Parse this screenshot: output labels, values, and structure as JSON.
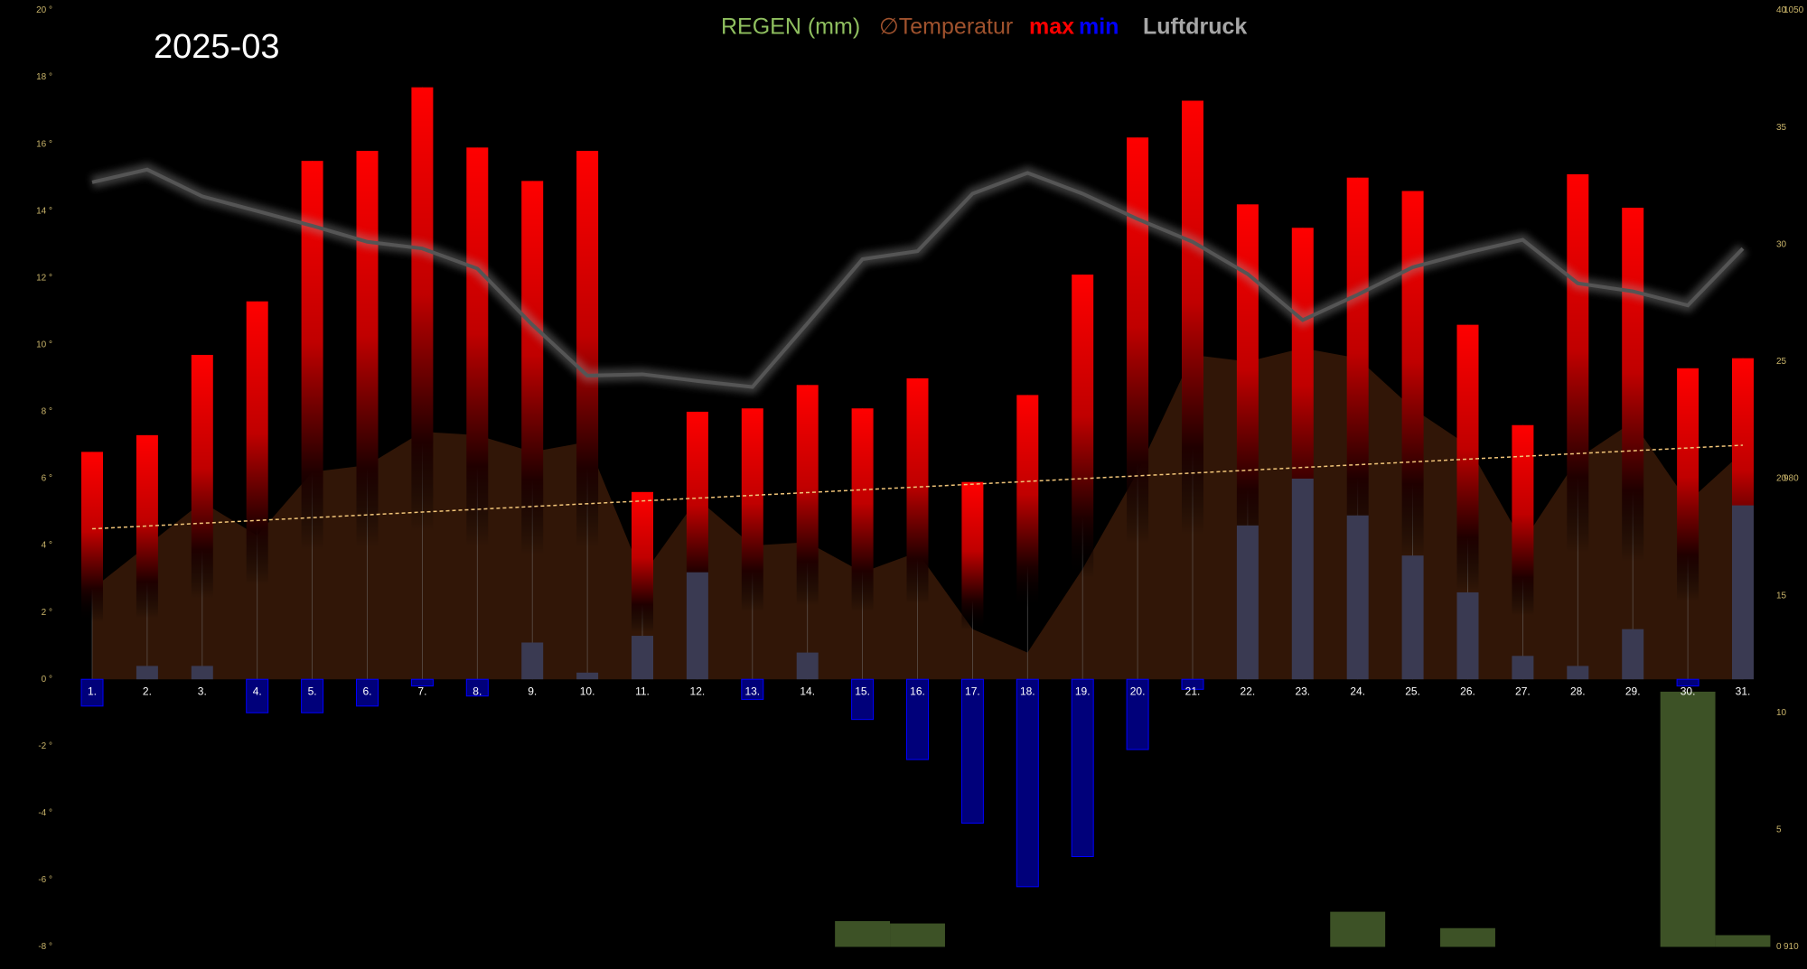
{
  "chart_data": {
    "type": "combo",
    "title": "2025-03",
    "categories": [
      "1.",
      "2.",
      "3.",
      "4.",
      "5.",
      "6.",
      "7.",
      "8.",
      "9.",
      "10.",
      "11.",
      "12.",
      "13.",
      "14.",
      "15.",
      "16.",
      "17.",
      "18.",
      "19.",
      "20.",
      "21.",
      "22.",
      "23.",
      "24.",
      "25.",
      "26.",
      "27.",
      "28.",
      "29.",
      "30.",
      "31."
    ],
    "ylim": [
      -8,
      20
    ],
    "yticks": [
      {
        "value": -8,
        "label": "-8 °"
      },
      {
        "value": -6,
        "label": "-6 °"
      },
      {
        "value": -4,
        "label": "-4 °"
      },
      {
        "value": -2,
        "label": "-2 °"
      },
      {
        "value": 0,
        "label": "0 °"
      },
      {
        "value": 2,
        "label": "2 °"
      },
      {
        "value": 4,
        "label": "4 °"
      },
      {
        "value": 6,
        "label": "6 °"
      },
      {
        "value": 8,
        "label": "8 °"
      },
      {
        "value": 10,
        "label": "10 °"
      },
      {
        "value": 12,
        "label": "12 °"
      },
      {
        "value": 14,
        "label": "14 °"
      },
      {
        "value": 16,
        "label": "16 °"
      },
      {
        "value": 18,
        "label": "18 °"
      },
      {
        "value": 20,
        "label": "20 °"
      }
    ],
    "y2lim": [
      0,
      40
    ],
    "y2ticks": [
      0,
      5,
      10,
      15,
      20,
      25,
      30,
      35,
      40
    ],
    "y3lim": [
      910,
      1050
    ],
    "y3ticks": [
      910,
      980,
      1050
    ],
    "series": [
      {
        "name": "REGEN (mm)",
        "color": "#3d5226",
        "legend_color": "#8fbf5f",
        "type": "bar",
        "axis": "y2",
        "values": [
          0,
          0,
          0,
          0,
          0,
          0,
          0,
          0,
          0,
          0,
          0,
          0,
          0,
          0,
          1.1,
          1.0,
          0,
          0,
          0,
          0,
          0,
          0,
          0,
          1.5,
          0,
          0.8,
          0,
          0,
          0,
          10.9,
          0.5
        ]
      },
      {
        "name": "∅Temperatur",
        "color": "#3a1a08",
        "legend_color": "#a0522d",
        "type": "area",
        "values": [
          2.7,
          4.0,
          5.3,
          4.3,
          6.2,
          6.4,
          7.4,
          7.3,
          6.8,
          7.1,
          3.1,
          5.4,
          4.0,
          4.1,
          3.2,
          3.8,
          1.5,
          0.8,
          3.3,
          6.2,
          9.7,
          9.5,
          9.9,
          9.6,
          8.1,
          7.0,
          4.1,
          6.6,
          7.7,
          5.3,
          6.8
        ]
      },
      {
        "name": "max",
        "color": "#ff0000",
        "type": "bar",
        "values": [
          6.8,
          7.3,
          9.7,
          11.3,
          15.5,
          15.8,
          17.7,
          15.9,
          14.9,
          15.8,
          5.6,
          8.0,
          8.1,
          8.8,
          8.1,
          9.0,
          5.9,
          8.5,
          12.1,
          16.2,
          17.3,
          14.2,
          13.5,
          15.0,
          14.6,
          10.6,
          7.6,
          15.1,
          14.1,
          9.3,
          9.6
        ]
      },
      {
        "name": "min",
        "color": "#0000ff",
        "type": "bar",
        "values": [
          -0.8,
          0.4,
          0.4,
          -1.0,
          -1.0,
          -0.8,
          -0.2,
          -0.5,
          1.1,
          0.2,
          1.3,
          3.2,
          -0.6,
          0.8,
          -1.2,
          -2.4,
          -4.3,
          -6.2,
          -5.3,
          -2.1,
          -0.3,
          4.6,
          6.0,
          4.9,
          3.7,
          2.6,
          0.7,
          0.4,
          1.5,
          -0.2,
          5.2
        ]
      },
      {
        "name": "Luftdruck",
        "color": "#a6a6a6",
        "type": "line",
        "axis": "y3",
        "values": [
          1024.3,
          1026.2,
          1022.2,
          1020.0,
          1017.8,
          1015.4,
          1014.4,
          1011.4,
          1003.0,
          995.4,
          995.6,
          994.6,
          993.7,
          1003.2,
          1012.8,
          1014.0,
          1022.6,
          1025.7,
          1022.6,
          1018.8,
          1015.4,
          1010.6,
          1003.7,
          1007.5,
          1011.6,
          1013.8,
          1015.7,
          1009.2,
          1008.0,
          1005.9,
          1014.4
        ]
      }
    ],
    "trend": {
      "color": "#f0c478",
      "values": [
        4.5,
        7.0
      ]
    }
  }
}
